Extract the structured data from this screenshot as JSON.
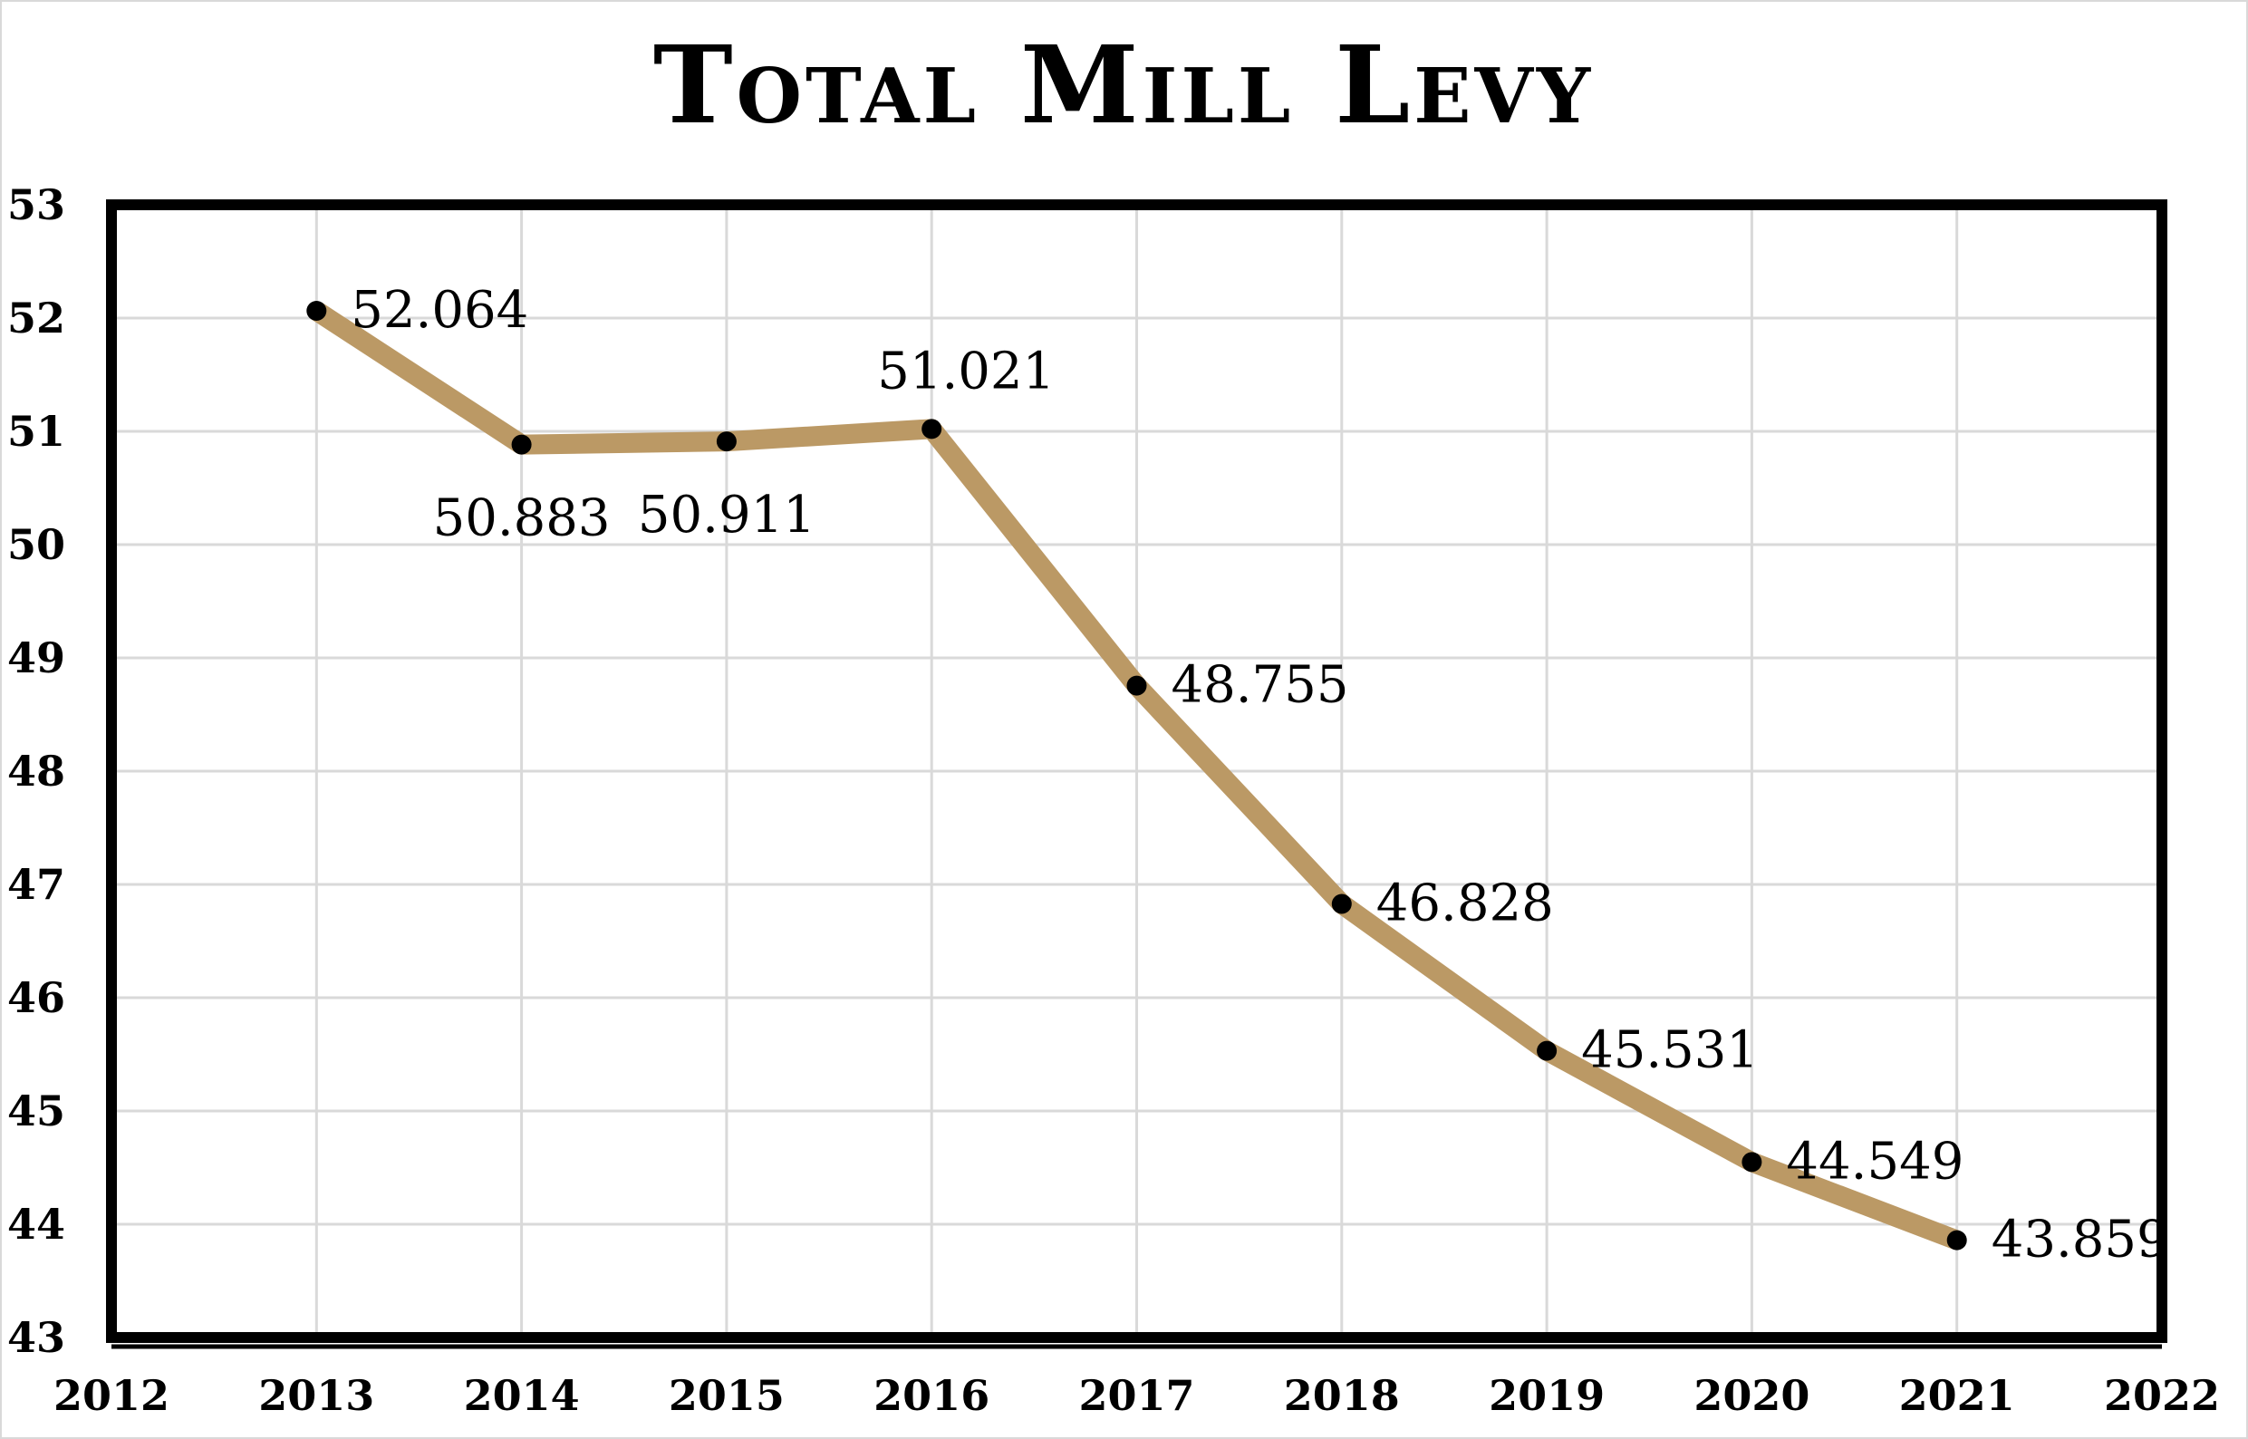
{
  "chart_data": {
    "type": "line",
    "title": "Total Mill Levy",
    "xlabel": "",
    "ylabel": "",
    "x": [
      2013,
      2014,
      2015,
      2016,
      2017,
      2018,
      2019,
      2020,
      2021
    ],
    "values": [
      52.064,
      50.883,
      50.911,
      51.021,
      48.755,
      46.828,
      45.531,
      44.549,
      43.859
    ],
    "data_labels": [
      "52.064",
      "50.883",
      "50.911",
      "51.021",
      "48.755",
      "46.828",
      "45.531",
      "44.549",
      "43.859"
    ],
    "label_positions": [
      "right",
      "below",
      "below",
      "above",
      "right",
      "right",
      "right",
      "right",
      "right"
    ],
    "xlim": [
      2012,
      2022
    ],
    "ylim": [
      43,
      53
    ],
    "x_ticks": [
      "2012",
      "2013",
      "2014",
      "2015",
      "2016",
      "2017",
      "2018",
      "2019",
      "2020",
      "2021",
      "2022"
    ],
    "y_ticks": [
      "43",
      "44",
      "45",
      "46",
      "47",
      "48",
      "49",
      "50",
      "51",
      "52",
      "53"
    ],
    "grid": true,
    "legend": "none",
    "colors": {
      "line": "#BB9965",
      "marker": "#000000",
      "grid": "#d9d9d9",
      "frame": "#000000"
    }
  }
}
